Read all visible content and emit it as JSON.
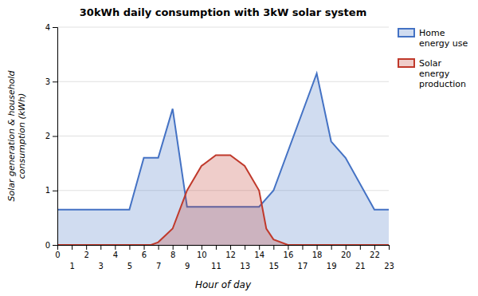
{
  "chart_data": {
    "type": "area",
    "title": "30kWh daily consumption with 3kW solar system",
    "ylabel": "Solar generation & household\nconsumption (kWh)",
    "xlabel": "Hour of day",
    "series": [
      {
        "name": "Home\nenergy use",
        "color": "#4472C4",
        "x": [
          0,
          5,
          6,
          7,
          8,
          9,
          10,
          14,
          15,
          18,
          19,
          20,
          22,
          23
        ],
        "values": [
          0.65,
          0.65,
          1.6,
          1.6,
          2.5,
          0.7,
          0.7,
          0.7,
          1.0,
          3.15,
          1.9,
          1.6,
          0.65,
          0.65
        ]
      },
      {
        "name": "Solar\nenergy\nproduction",
        "color": "#C0392B",
        "x": [
          0,
          6.5,
          7,
          8,
          9,
          10,
          11,
          12,
          13,
          14,
          14.5,
          15,
          16,
          23
        ],
        "values": [
          0,
          0,
          0.05,
          0.3,
          1.0,
          1.45,
          1.65,
          1.65,
          1.45,
          1.0,
          0.3,
          0.1,
          0.0,
          0
        ]
      }
    ],
    "xlim": [
      0,
      23
    ],
    "ylim": [
      0,
      4
    ],
    "xticks": [
      0,
      1,
      2,
      3,
      4,
      5,
      6,
      7,
      8,
      9,
      10,
      11,
      12,
      13,
      14,
      15,
      16,
      17,
      18,
      19,
      20,
      21,
      22,
      23
    ],
    "yticks": [
      0,
      1,
      2,
      3,
      4
    ],
    "grid": true,
    "legend": "upper right"
  }
}
